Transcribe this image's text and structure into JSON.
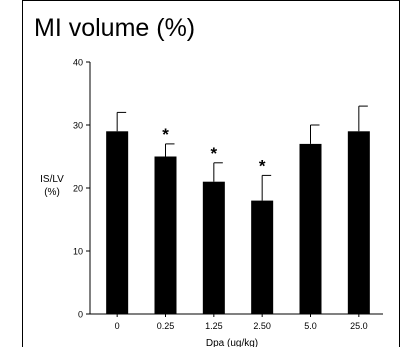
{
  "chart_data": {
    "type": "bar",
    "title": "MI volume (%)",
    "ylabel_line1": "IS/LV",
    "ylabel_line2": "(%)",
    "xlabel": "Dpa (ug/kg)",
    "categories": [
      "0",
      "0.25",
      "1.25",
      "2.50",
      "5.0",
      "25.0"
    ],
    "values": [
      29,
      25,
      21,
      18,
      27,
      29
    ],
    "errors": [
      3,
      2,
      3,
      4,
      3,
      4
    ],
    "significant": [
      false,
      true,
      true,
      true,
      false,
      false
    ],
    "significance_marker": "*",
    "ylim": [
      0,
      40
    ],
    "yticks": [
      0,
      10,
      20,
      30,
      40
    ],
    "bar_color": "#000000",
    "grid": false,
    "legend": "none"
  }
}
